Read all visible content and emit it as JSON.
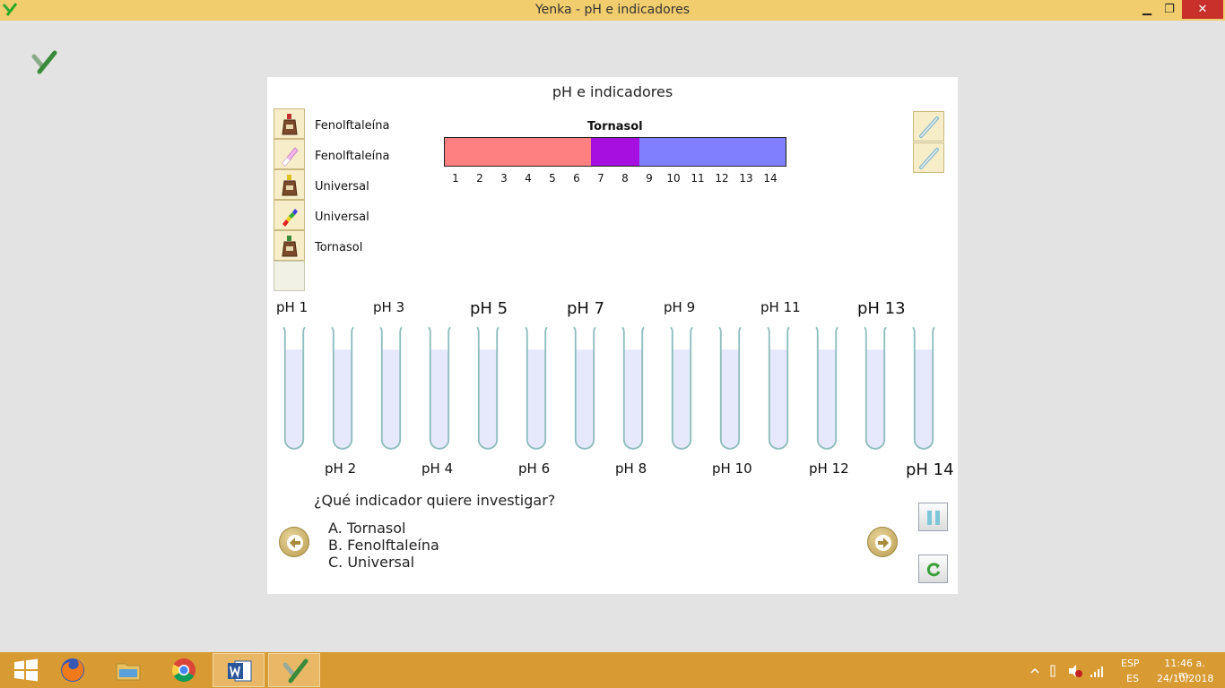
{
  "window": {
    "title": "Yenka - pH e indicadores",
    "minimize_label": "▁",
    "maximize_label": "❐",
    "close_label": "✕"
  },
  "panel": {
    "title": "pH e indicadores",
    "indicators": [
      {
        "label": "Fenolftaleína",
        "icon": "dropper-bottle-icon"
      },
      {
        "label": "Fenolftaleína",
        "icon": "ph-paper-pink-icon"
      },
      {
        "label": "Universal",
        "icon": "dropper-bottle-icon"
      },
      {
        "label": "Universal",
        "icon": "ph-paper-rainbow-icon"
      },
      {
        "label": "Tornasol",
        "icon": "dropper-bottle-icon"
      }
    ],
    "scale": {
      "title": "Tornasol",
      "segments": [
        {
          "from": 1,
          "to": 7,
          "color": "#ff8080"
        },
        {
          "from": 7,
          "to": 9,
          "color": "#a50fe0"
        },
        {
          "from": 9,
          "to": 15,
          "color": "#8080ff"
        }
      ],
      "numbers": [
        "1",
        "2",
        "3",
        "4",
        "5",
        "6",
        "7",
        "8",
        "9",
        "10",
        "11",
        "12",
        "13",
        "14"
      ]
    },
    "tubes": [
      {
        "label": "pH 1"
      },
      {
        "label": "pH 2"
      },
      {
        "label": "pH 3"
      },
      {
        "label": "pH 4"
      },
      {
        "label": "pH 5"
      },
      {
        "label": "pH 6"
      },
      {
        "label": "pH 7"
      },
      {
        "label": "pH 8"
      },
      {
        "label": "pH 9"
      },
      {
        "label": "pH 10"
      },
      {
        "label": "pH 11"
      },
      {
        "label": "pH 12"
      },
      {
        "label": "pH 13"
      },
      {
        "label": "pH 14"
      }
    ],
    "question": "¿Qué indicador quiere investigar?",
    "options": [
      "A. Tornasol",
      "B. Fenolftaleína",
      "C. Universal"
    ]
  },
  "taskbar": {
    "items": [
      "windows-start-icon",
      "firefox-icon",
      "file-explorer-icon",
      "chrome-icon",
      "word-icon",
      "yenka-icon"
    ],
    "lang_top": "ESP",
    "lang_bottom": "ES",
    "time": "11:46 a. m.",
    "date": "24/10/2018"
  },
  "colors": {
    "titlebar": "#f2cd6e",
    "taskbar": "#d89a33",
    "tube_liquid": "#e6e8fb",
    "tube_outline": "#8fbdbd"
  }
}
